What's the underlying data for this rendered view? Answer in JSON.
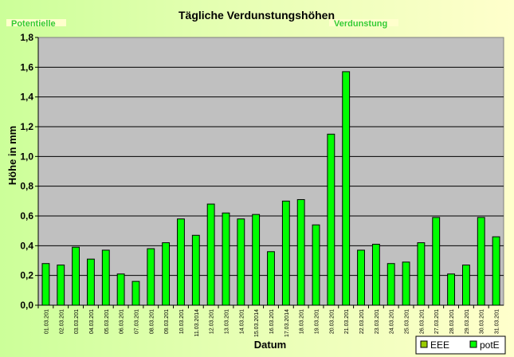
{
  "chart_data": {
    "type": "bar",
    "title": "Tägliche Verdunstungshöhen",
    "xlabel": "Datum",
    "ylabel": "Höhe in mm",
    "ylim": [
      0,
      1.8
    ],
    "yticks": [
      "0,0",
      "0,2",
      "0,4",
      "0,6",
      "0,8",
      "1,0",
      "1,2",
      "1,4",
      "1,6",
      "1,8"
    ],
    "grid": true,
    "legend_position": "bottom-right",
    "categories": [
      "01.03.201",
      "02.03.201",
      "03.03.201",
      "04.03.201",
      "05.03.201",
      "06.03.201",
      "07.03.201",
      "08.03.201",
      "09.03.201",
      "10.03.201",
      "11.03.2014",
      "12.03.201",
      "13.03.201",
      "14.03.201",
      "15.03.2014",
      "16.03.201",
      "17.03.2014",
      "18.03.201",
      "19.03.201",
      "20.03.201",
      "21.03.201",
      "22.03.201",
      "23.03.201",
      "24.03.201",
      "25.03.201",
      "26.03.201",
      "27.03.201",
      "28.03.201",
      "29.03.201",
      "30.03.201",
      "31.03.201"
    ],
    "series": [
      {
        "name": "EEE",
        "color": "#99CC00",
        "values": [
          0,
          0,
          0,
          0,
          0,
          0,
          0,
          0,
          0,
          0,
          0,
          0,
          0,
          0,
          0,
          0,
          0,
          0,
          0,
          0,
          0,
          0,
          0,
          0,
          0,
          0,
          0,
          0,
          0,
          0,
          0
        ]
      },
      {
        "name": "potE",
        "color": "#00FF00",
        "values": [
          0.28,
          0.27,
          0.39,
          0.31,
          0.37,
          0.21,
          0.16,
          0.38,
          0.42,
          0.58,
          0.47,
          0.68,
          0.62,
          0.58,
          0.61,
          0.36,
          0.7,
          0.71,
          0.54,
          1.15,
          1.57,
          0.37,
          0.41,
          0.28,
          0.29,
          0.42,
          0.59,
          0.21,
          0.27,
          0.59,
          0.46
        ]
      }
    ],
    "overlay_labels": [
      "Potentielle",
      "Verdunstung"
    ],
    "plot_background": "#C0C0C0"
  }
}
